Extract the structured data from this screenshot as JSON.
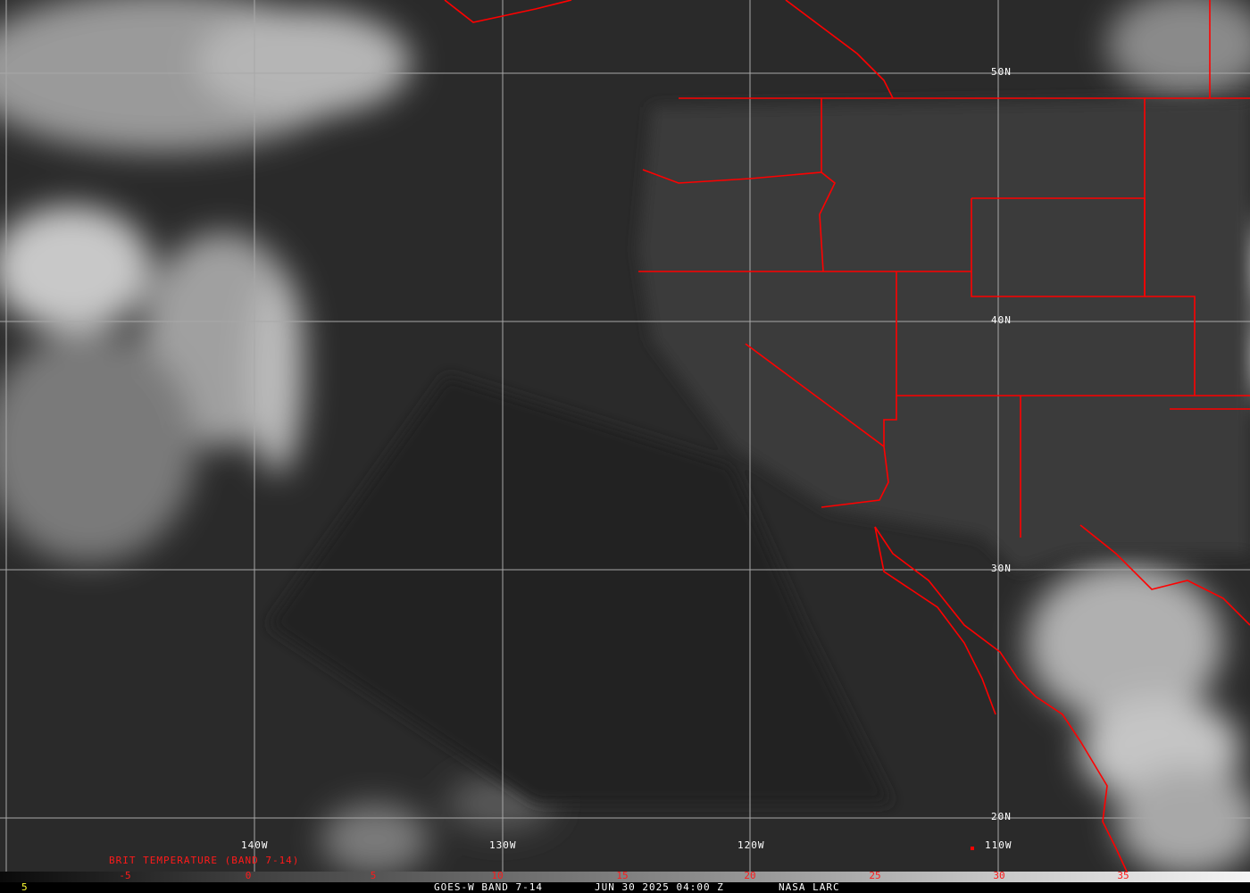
{
  "map": {
    "longitude_labels": [
      "140W",
      "130W",
      "120W",
      "110W"
    ],
    "latitude_labels": [
      "50N",
      "40N",
      "30N",
      "20N"
    ],
    "border_color": "#ff0000",
    "grid_color": "#a0a0a0"
  },
  "legend": {
    "title": "BRIT TEMPERATURE (BAND 7-14)",
    "scale_ticks": [
      "-5",
      "0",
      "5",
      "10",
      "15",
      "20",
      "25",
      "30",
      "35"
    ]
  },
  "footer": {
    "left_value": "5",
    "caption": "GOES-W BAND 7-14",
    "datetime": "JUN 30 2025 04:00 Z",
    "credit": "NASA LARC"
  }
}
